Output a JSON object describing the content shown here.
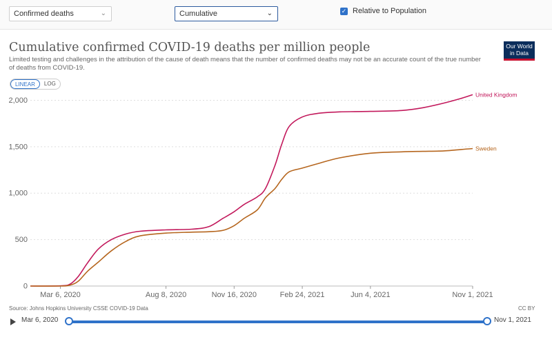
{
  "controls": {
    "metric_select": "Confirmed deaths",
    "interval_select": "Cumulative",
    "relative_checkbox_label": "Relative to Population",
    "relative_checked": true
  },
  "header": {
    "title": "Cumulative confirmed COVID-19 deaths per million people",
    "subtitle": "Limited testing and challenges in the attribution of the cause of death means that the number of confirmed deaths may not be an accurate count of the true number of deaths from COVID-19.",
    "logo_line1": "Our World",
    "logo_line2": "in Data"
  },
  "scale_toggle": {
    "linear": "LINEAR",
    "log": "LOG",
    "selected": "LINEAR"
  },
  "chart_data": {
    "type": "line",
    "title": "Cumulative confirmed COVID-19 deaths per million people",
    "xlabel": "",
    "ylabel": "",
    "ylim": [
      0,
      2100
    ],
    "x_range": [
      "2020-01-22",
      "2021-11-01"
    ],
    "yticks": [
      0,
      500,
      1000,
      1500,
      2000
    ],
    "ytick_labels": [
      "0",
      "500",
      "1,000",
      "1,500",
      "2,000"
    ],
    "xticks": [
      "2020-03-06",
      "2020-08-08",
      "2020-11-16",
      "2021-02-24",
      "2021-06-04",
      "2021-11-01"
    ],
    "xtick_labels": [
      "Mar 6, 2020",
      "Aug 8, 2020",
      "Nov 16, 2020",
      "Feb 24, 2021",
      "Jun 4, 2021",
      "Nov 1, 2021"
    ],
    "grid": "horizontal dotted",
    "series": [
      {
        "name": "United Kingdom",
        "color": "#c2185b",
        "x": [
          "2020-01-22",
          "2020-03-06",
          "2020-03-20",
          "2020-04-01",
          "2020-04-15",
          "2020-05-01",
          "2020-05-20",
          "2020-06-10",
          "2020-07-01",
          "2020-08-08",
          "2020-09-15",
          "2020-10-10",
          "2020-10-31",
          "2020-11-16",
          "2020-12-01",
          "2020-12-20",
          "2021-01-01",
          "2021-01-15",
          "2021-01-25",
          "2021-02-05",
          "2021-02-24",
          "2021-03-20",
          "2021-04-20",
          "2021-06-04",
          "2021-07-20",
          "2021-08-20",
          "2021-09-20",
          "2021-10-15",
          "2021-11-01"
        ],
        "y": [
          0,
          2,
          20,
          100,
          250,
          400,
          500,
          560,
          590,
          605,
          612,
          640,
          730,
          800,
          880,
          960,
          1050,
          1300,
          1530,
          1720,
          1820,
          1860,
          1875,
          1880,
          1890,
          1920,
          1970,
          2020,
          2060
        ]
      },
      {
        "name": "Sweden",
        "color": "#b5651d",
        "x": [
          "2020-01-22",
          "2020-03-06",
          "2020-03-20",
          "2020-04-01",
          "2020-04-15",
          "2020-05-01",
          "2020-05-20",
          "2020-06-10",
          "2020-07-01",
          "2020-08-08",
          "2020-09-15",
          "2020-10-10",
          "2020-10-31",
          "2020-11-16",
          "2020-12-01",
          "2020-12-20",
          "2021-01-01",
          "2021-01-15",
          "2021-01-25",
          "2021-02-05",
          "2021-02-24",
          "2021-03-20",
          "2021-04-20",
          "2021-06-04",
          "2021-07-20",
          "2021-08-20",
          "2021-09-20",
          "2021-10-15",
          "2021-11-01"
        ],
        "y": [
          0,
          0,
          10,
          50,
          160,
          260,
          380,
          480,
          540,
          570,
          580,
          585,
          600,
          650,
          730,
          820,
          950,
          1050,
          1150,
          1230,
          1270,
          1320,
          1380,
          1430,
          1445,
          1450,
          1455,
          1470,
          1480
        ]
      }
    ]
  },
  "footer": {
    "source": "Source: Johns Hopkins University CSSE COVID-19 Data",
    "license": "CC BY"
  },
  "timeline": {
    "start_label": "Mar 6, 2020",
    "end_label": "Nov 1, 2021",
    "start_date": "2020-03-06",
    "end_date": "2021-11-01"
  }
}
